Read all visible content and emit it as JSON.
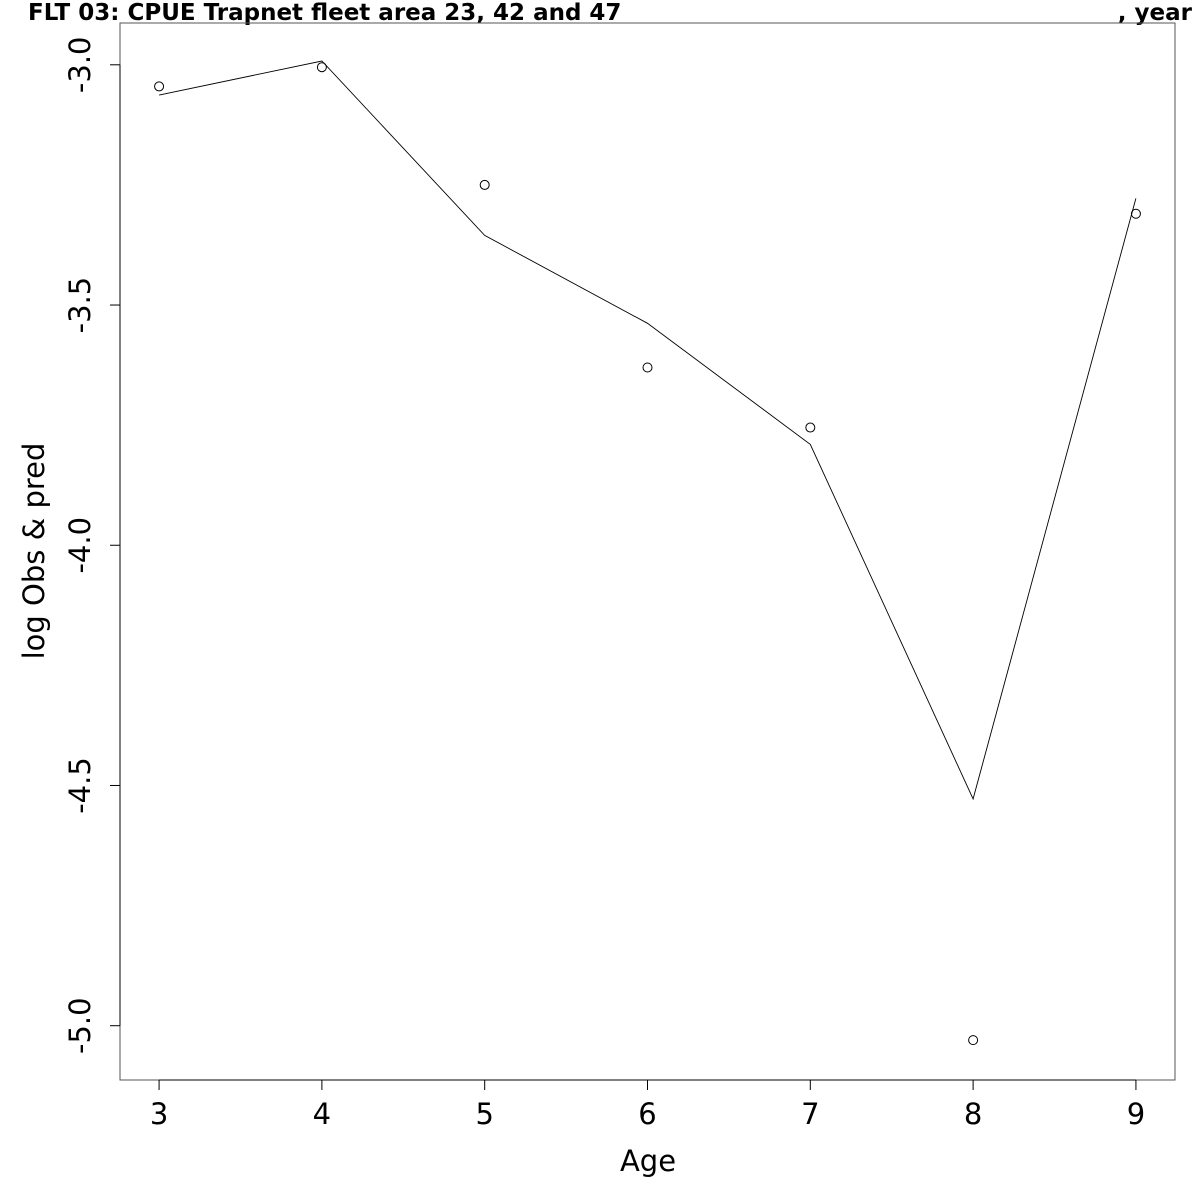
{
  "title_left": "FLT 03: CPUE Trapnet fleet area 23, 42 and 47",
  "title_right": ", year",
  "chart_data": {
    "type": "line",
    "title": "FLT 03: CPUE Trapnet fleet area 23, 42 and 47 , year",
    "xlabel": "Age",
    "ylabel": "log Obs & pred",
    "x_ticks": [
      3,
      4,
      5,
      6,
      7,
      8,
      9
    ],
    "y_ticks": [
      -3.0,
      -3.5,
      -4.0,
      -4.5,
      -5.0
    ],
    "y_tick_labels": [
      "-3.0",
      "-3.5",
      "-4.0",
      "-4.5",
      "-5.0"
    ],
    "xlim": [
      2.76,
      9.24
    ],
    "ylim": [
      -5.113,
      -2.913
    ],
    "grid": false,
    "series": [
      {
        "kind": "points",
        "x": [
          3,
          4,
          5,
          6,
          7,
          8,
          9
        ],
        "y": [
          -3.045,
          -3.005,
          -3.25,
          -3.63,
          -3.755,
          -5.03,
          -3.31
        ]
      },
      {
        "kind": "line",
        "x": [
          3,
          4,
          5,
          6,
          7,
          8,
          9
        ],
        "y": [
          -3.063,
          -2.992,
          -3.355,
          -3.538,
          -3.79,
          -4.528,
          -3.278
        ]
      }
    ]
  }
}
